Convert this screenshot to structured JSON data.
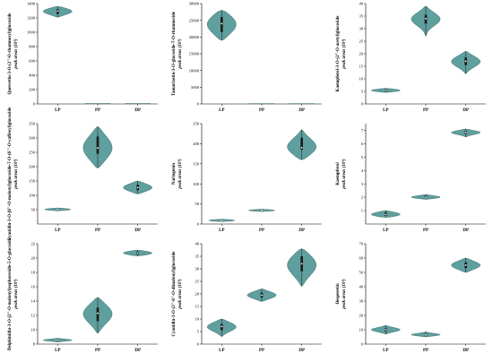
{
  "chart_data": [
    {
      "type": "violin",
      "ylabel": "Quercetin-3-O-(2''-O-rhamnosyl)glucoside",
      "ylabel_unit": "peak areas (10³)",
      "ylim": [
        0,
        1400
      ],
      "yticks": [
        0,
        200,
        400,
        600,
        800,
        1000,
        1200,
        1400
      ],
      "categories": [
        "LP",
        "PP",
        "DP"
      ],
      "series": [
        {
          "category": "LP",
          "min": 1210,
          "q1": 1255,
          "median": 1295,
          "q3": 1320,
          "max": 1360
        },
        {
          "category": "PP",
          "min": 2,
          "q1": 4,
          "median": 5,
          "q3": 6,
          "max": 8
        },
        {
          "category": "DP",
          "min": 2,
          "q1": 4,
          "median": 5,
          "q3": 6,
          "max": 8
        }
      ]
    },
    {
      "type": "violin",
      "ylabel": "Tamarixetin-3-O-glucoside-7-O-rhamnoside",
      "ylabel_unit": "peak areas (10³)",
      "ylim": [
        0,
        30000
      ],
      "yticks": [
        0,
        5000,
        10000,
        15000,
        20000,
        25000,
        30000
      ],
      "categories": [
        "LP",
        "PP",
        "DP"
      ],
      "series": [
        {
          "category": "LP",
          "min": 19000,
          "q1": 21500,
          "median": 24000,
          "q3": 26000,
          "max": 28000
        },
        {
          "category": "PP",
          "min": 20,
          "q1": 40,
          "median": 60,
          "q3": 80,
          "max": 100
        },
        {
          "category": "DP",
          "min": 20,
          "q1": 40,
          "median": 60,
          "q3": 80,
          "max": 100
        }
      ]
    },
    {
      "type": "violin",
      "ylabel": "Kaempferol-3-O-(2''-O-acetyl)glucoside",
      "ylabel_unit": "peak areas (10³)",
      "ylim": [
        0,
        40
      ],
      "yticks": [
        0,
        5,
        10,
        15,
        20,
        25,
        30,
        35,
        40
      ],
      "categories": [
        "LP",
        "PP",
        "DP"
      ],
      "series": [
        {
          "category": "LP",
          "min": 4.6,
          "q1": 5.0,
          "median": 5.4,
          "q3": 5.8,
          "max": 6.2
        },
        {
          "category": "PP",
          "min": 27,
          "q1": 32,
          "median": 34,
          "q3": 35.5,
          "max": 39
        },
        {
          "category": "DP",
          "min": 12,
          "q1": 15.5,
          "median": 17,
          "q3": 18.5,
          "max": 21
        }
      ]
    },
    {
      "type": "violin",
      "ylabel": "Cyanidin-3-O-[6''-O-malonyl)glucoside-7-O-(6'''-O-caffeoyl)glucoside",
      "ylabel_unit": "peak areas (10³)",
      "ylim": [
        0,
        350
      ],
      "yticks": [
        50,
        100,
        150,
        200,
        250,
        300,
        350
      ],
      "categories": [
        "LP",
        "PP",
        "DP"
      ],
      "series": [
        {
          "category": "LP",
          "min": 46,
          "q1": 49,
          "median": 51,
          "q3": 53,
          "max": 56
        },
        {
          "category": "PP",
          "min": 195,
          "q1": 245,
          "median": 265,
          "q3": 305,
          "max": 340
        },
        {
          "category": "DP",
          "min": 105,
          "q1": 118,
          "median": 127,
          "q3": 137,
          "max": 150
        }
      ]
    },
    {
      "type": "violin",
      "ylabel": "Naringenin",
      "ylabel_unit": "peak areas (10³)",
      "ylim": [
        0,
        250
      ],
      "yticks": [
        0,
        50,
        100,
        150,
        200,
        250
      ],
      "categories": [
        "LP",
        "PP",
        "DP"
      ],
      "series": [
        {
          "category": "LP",
          "min": 6,
          "q1": 8,
          "median": 9,
          "q3": 10,
          "max": 12
        },
        {
          "category": "PP",
          "min": 31,
          "q1": 33,
          "median": 34,
          "q3": 35,
          "max": 37
        },
        {
          "category": "DP",
          "min": 160,
          "q1": 185,
          "median": 190,
          "q3": 215,
          "max": 235
        }
      ]
    },
    {
      "type": "violin",
      "ylabel": "Kaempferol",
      "ylabel_unit": "peak areas (10³)",
      "ylim": [
        0,
        7.5
      ],
      "yticks": [
        1,
        2,
        3,
        4,
        5,
        6,
        7
      ],
      "categories": [
        "LP",
        "PP",
        "DP"
      ],
      "series": [
        {
          "category": "LP",
          "min": 0.5,
          "q1": 0.6,
          "median": 0.7,
          "q3": 0.85,
          "max": 1.0
        },
        {
          "category": "PP",
          "min": 1.85,
          "q1": 1.95,
          "median": 2.0,
          "q3": 2.1,
          "max": 2.2
        },
        {
          "category": "DP",
          "min": 6.5,
          "q1": 6.75,
          "median": 6.85,
          "q3": 6.95,
          "max": 7.1
        }
      ]
    },
    {
      "type": "violin",
      "ylabel": "Delphinidin-3-O-[2''-O-malonyl)sophoroside-5-O-glucoside",
      "ylabel_unit": "peak areas (10³)",
      "ylim": [
        8,
        22
      ],
      "yticks": [
        8,
        10,
        12,
        14,
        16,
        18,
        20,
        22
      ],
      "categories": [
        "LP",
        "PP",
        "DP"
      ],
      "series": [
        {
          "category": "LP",
          "min": 8.3,
          "q1": 8.45,
          "median": 8.55,
          "q3": 8.65,
          "max": 8.8
        },
        {
          "category": "PP",
          "min": 9.5,
          "q1": 11.2,
          "median": 12.3,
          "q3": 13.1,
          "max": 14.5
        },
        {
          "category": "DP",
          "min": 20.3,
          "q1": 20.5,
          "median": 20.7,
          "q3": 20.9,
          "max": 21.1
        }
      ]
    },
    {
      "type": "violin",
      "ylabel": "Cyanidin-3-O-(3''-6''-O-dimalonyl)glucoside",
      "ylabel_unit": "peak areas (10³)",
      "ylim": [
        0,
        40
      ],
      "yticks": [
        0,
        5,
        10,
        15,
        20,
        25,
        30,
        35,
        40
      ],
      "categories": [
        "LP",
        "PP",
        "DP"
      ],
      "series": [
        {
          "category": "LP",
          "min": 3,
          "q1": 5.5,
          "median": 7,
          "q3": 8,
          "max": 10
        },
        {
          "category": "PP",
          "min": 17,
          "q1": 18.5,
          "median": 19.5,
          "q3": 20.5,
          "max": 22
        },
        {
          "category": "DP",
          "min": 23,
          "q1": 29,
          "median": 32,
          "q3": 35,
          "max": 38
        }
      ]
    },
    {
      "type": "violin",
      "ylabel": "Hesperetin",
      "ylabel_unit": "peak areas (10³)",
      "ylim": [
        0,
        70
      ],
      "yticks": [
        0,
        10,
        20,
        30,
        40,
        50,
        60,
        70
      ],
      "categories": [
        "LP",
        "PP",
        "DP"
      ],
      "series": [
        {
          "category": "LP",
          "min": 7,
          "q1": 9,
          "median": 10,
          "q3": 11,
          "max": 13
        },
        {
          "category": "PP",
          "min": 5,
          "q1": 6,
          "median": 6.5,
          "q3": 7.2,
          "max": 8.5
        },
        {
          "category": "DP",
          "min": 50,
          "q1": 53,
          "median": 55,
          "q3": 57,
          "max": 60
        }
      ]
    }
  ],
  "colors": {
    "violin_fill": "#5f9f9e",
    "violin_stroke": "#3e6e6d",
    "box_fill": "#1a1a1a",
    "median_fill": "#ffffff",
    "axis": "#000000"
  }
}
